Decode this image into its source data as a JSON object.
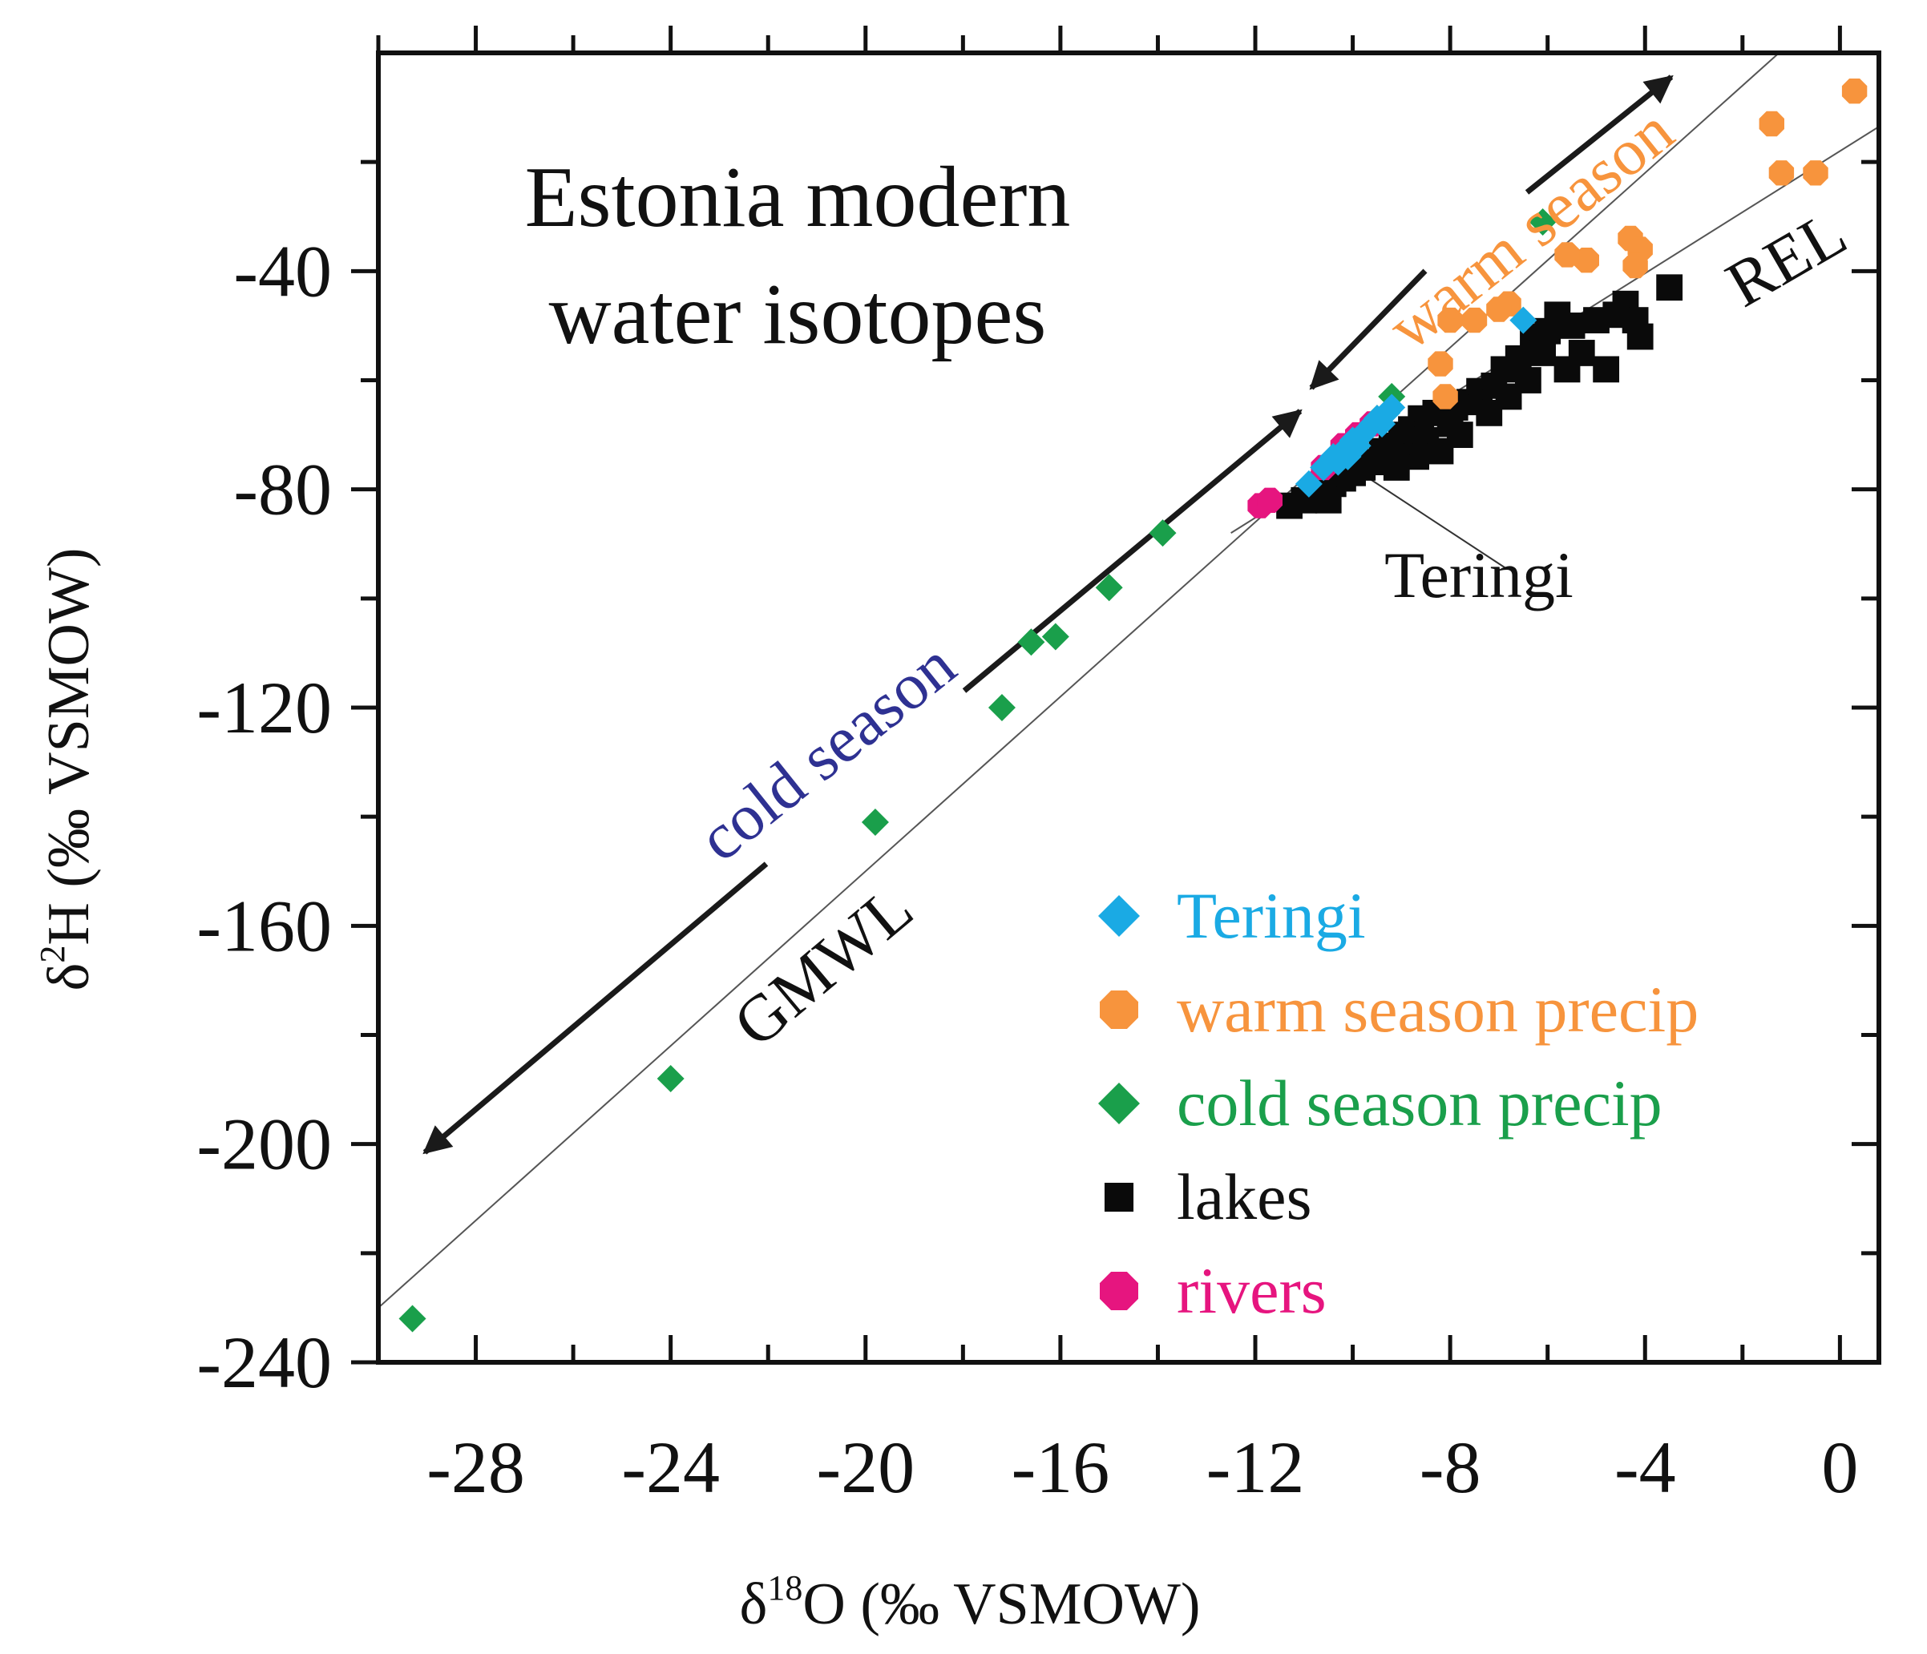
{
  "chart_data": {
    "type": "scatter",
    "title": [
      "Estonia modern",
      "water isotopes"
    ],
    "xlabel": {
      "prefix": "δ",
      "sup": "18",
      "main": "O (‰ VSMOW)"
    },
    "ylabel": {
      "prefix": "δ",
      "sup": "2",
      "main": "H (‰ VSMOW)"
    },
    "xlim": [
      -30,
      0.8
    ],
    "ylim": [
      -240,
      0
    ],
    "xticks": [
      -28,
      -24,
      -20,
      -16,
      -12,
      -8,
      -4,
      0
    ],
    "yticks": [
      -40,
      -80,
      -120,
      -160,
      -200,
      -240
    ],
    "xtick_labels": [
      "-28",
      "-24",
      "-20",
      "-16",
      "-12",
      "-8",
      "-4",
      "0"
    ],
    "ytick_labels": [
      "-40",
      "-80",
      "-120",
      "-160",
      "-200",
      "-240"
    ],
    "grid": false,
    "lines": [
      {
        "name": "GMWL",
        "label": "GMWL",
        "slope": 8,
        "intercept": 10,
        "x": [
          -31,
          2
        ]
      },
      {
        "name": "REL",
        "label": "REL",
        "slope": 5.6,
        "intercept": -18,
        "x": [
          -12.5,
          1.5
        ]
      }
    ],
    "annotations": [
      {
        "name": "warm-season",
        "text": "warm season",
        "color": "#f7943d"
      },
      {
        "name": "cold-season",
        "text": "cold season",
        "color": "#2e3192"
      },
      {
        "name": "teringi-callout",
        "text": "Teringi",
        "color": "#111111"
      }
    ],
    "series": [
      {
        "name": "Teringi",
        "marker": "diamond",
        "color": "#1aaae4",
        "points": [
          [
            -10.9,
            -79
          ],
          [
            -10.6,
            -76
          ],
          [
            -10.4,
            -74
          ],
          [
            -10.2,
            -73
          ],
          [
            -10.0,
            -71
          ],
          [
            -9.9,
            -72
          ],
          [
            -9.8,
            -70
          ],
          [
            -9.7,
            -69
          ],
          [
            -9.6,
            -68
          ],
          [
            -9.5,
            -67
          ],
          [
            -9.4,
            -68
          ],
          [
            -9.3,
            -66
          ],
          [
            -9.2,
            -65
          ],
          [
            -10.3,
            -75
          ],
          [
            -10.1,
            -74
          ],
          [
            -6.5,
            -49
          ]
        ]
      },
      {
        "name": "warm season precip",
        "marker": "octagon",
        "color": "#f7943d",
        "points": [
          [
            0.3,
            -7
          ],
          [
            -1.4,
            -13
          ],
          [
            -1.2,
            -22
          ],
          [
            -0.5,
            -22
          ],
          [
            -4.3,
            -34
          ],
          [
            -4.1,
            -36
          ],
          [
            -4.2,
            -39
          ],
          [
            -5.2,
            -38
          ],
          [
            -5.6,
            -37
          ],
          [
            -6.8,
            -46
          ],
          [
            -7.0,
            -47
          ],
          [
            -7.5,
            -49
          ],
          [
            -8.0,
            -49
          ],
          [
            -8.2,
            -57
          ],
          [
            -8.1,
            -63
          ]
        ]
      },
      {
        "name": "cold season precip",
        "marker": "diamond",
        "color": "#1a9f4b",
        "points": [
          [
            -29.3,
            -232
          ],
          [
            -24.0,
            -188
          ],
          [
            -19.8,
            -141
          ],
          [
            -17.2,
            -120
          ],
          [
            -16.6,
            -108
          ],
          [
            -16.1,
            -107
          ],
          [
            -15.0,
            -98
          ],
          [
            -13.9,
            -88
          ],
          [
            -9.2,
            -63
          ],
          [
            -6.1,
            -31
          ],
          [
            -9.5,
            -67
          ]
        ]
      },
      {
        "name": "lakes",
        "marker": "square",
        "color": "#0a0a0a",
        "points": [
          [
            -3.5,
            -43
          ],
          [
            -4.4,
            -46
          ],
          [
            -4.6,
            -48
          ],
          [
            -4.2,
            -49
          ],
          [
            -4.1,
            -52
          ],
          [
            -5.0,
            -49
          ],
          [
            -5.5,
            -50
          ],
          [
            -5.8,
            -48
          ],
          [
            -6.0,
            -51
          ],
          [
            -6.3,
            -52
          ],
          [
            -5.3,
            -55
          ],
          [
            -6.1,
            -55
          ],
          [
            -5.6,
            -58
          ],
          [
            -4.8,
            -58
          ],
          [
            -6.6,
            -56
          ],
          [
            -6.9,
            -58
          ],
          [
            -6.4,
            -60
          ],
          [
            -7.1,
            -61
          ],
          [
            -7.4,
            -62
          ],
          [
            -6.8,
            -63
          ],
          [
            -7.6,
            -64
          ],
          [
            -7.9,
            -65
          ],
          [
            -7.2,
            -66
          ],
          [
            -8.3,
            -66
          ],
          [
            -8.6,
            -67
          ],
          [
            -8.0,
            -68
          ],
          [
            -8.8,
            -69
          ],
          [
            -9.0,
            -70
          ],
          [
            -8.5,
            -71
          ],
          [
            -9.2,
            -72
          ],
          [
            -9.4,
            -73
          ],
          [
            -8.7,
            -74
          ],
          [
            -9.6,
            -75
          ],
          [
            -9.8,
            -76
          ],
          [
            -10.0,
            -77
          ],
          [
            -10.2,
            -78
          ],
          [
            -10.4,
            -79
          ],
          [
            -10.6,
            -80
          ],
          [
            -10.8,
            -81
          ],
          [
            -11.0,
            -82
          ],
          [
            -11.3,
            -83
          ],
          [
            -7.8,
            -70
          ],
          [
            -8.2,
            -73
          ],
          [
            -9.1,
            -76
          ],
          [
            -10.5,
            -82
          ]
        ]
      },
      {
        "name": "rivers",
        "marker": "octagon",
        "color": "#e6157f",
        "points": [
          [
            -11.9,
            -83
          ],
          [
            -11.7,
            -82
          ],
          [
            -10.6,
            -76
          ],
          [
            -10.2,
            -72
          ],
          [
            -9.9,
            -70
          ],
          [
            -9.6,
            -68
          ]
        ]
      }
    ],
    "legend": {
      "position": "bottom-right",
      "entries": [
        {
          "label": "Teringi",
          "marker": "diamond",
          "color": "#1aaae4"
        },
        {
          "label": "warm season precip",
          "marker": "octagon",
          "color": "#f7943d"
        },
        {
          "label": "cold season precip",
          "marker": "diamond",
          "color": "#1a9f4b"
        },
        {
          "label": "lakes",
          "marker": "square",
          "color": "#0a0a0a"
        },
        {
          "label": "rivers",
          "marker": "octagon",
          "color": "#e6157f"
        }
      ]
    }
  }
}
